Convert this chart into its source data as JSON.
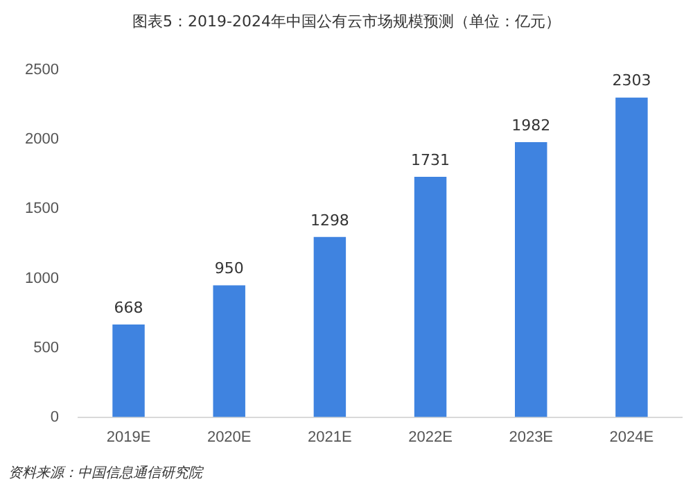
{
  "chart_data": {
    "type": "bar",
    "title": "图表5：2019-2024年中国公有云市场规模预测（单位：亿元）",
    "categories": [
      "2019E",
      "2020E",
      "2021E",
      "2022E",
      "2023E",
      "2024E"
    ],
    "values": [
      668,
      950,
      1298,
      1731,
      1982,
      2303
    ],
    "color": "#3f83e0",
    "ylim": [
      0,
      2500
    ],
    "yticks": [
      0,
      500,
      1000,
      1500,
      2000,
      2500
    ],
    "grid": false,
    "data_labels": true,
    "annotations": [
      "资料来源：中国信息通信研究院"
    ]
  }
}
